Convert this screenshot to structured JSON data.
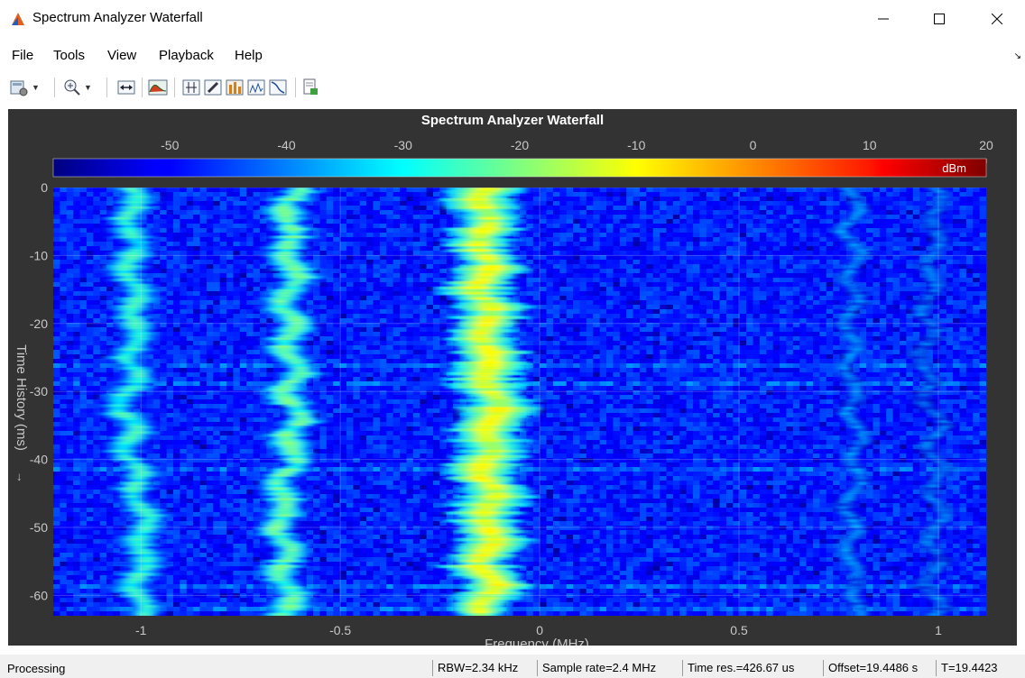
{
  "window": {
    "title": "Spectrum Analyzer Waterfall"
  },
  "menu": [
    "File",
    "Tools",
    "View",
    "Playback",
    "Help"
  ],
  "toolbar": {
    "buttons": [
      {
        "name": "configuration-icon",
        "has_dropdown": true
      },
      {
        "name": "zoom-in-icon",
        "has_dropdown": true
      },
      {
        "name": "scale-x-axis-icon",
        "has_dropdown": false
      },
      {
        "name": "spectrum-settings-icon",
        "has_dropdown": false
      },
      {
        "name": "measurement-cursor-icon",
        "has_dropdown": false
      },
      {
        "name": "edit-pen-icon",
        "has_dropdown": false
      },
      {
        "name": "peak-finder-icon",
        "has_dropdown": false
      },
      {
        "name": "distortion-measurement-icon",
        "has_dropdown": false
      },
      {
        "name": "ccdf-measurement-icon",
        "has_dropdown": false
      },
      {
        "name": "print-to-figure-icon",
        "has_dropdown": false
      }
    ]
  },
  "plot": {
    "title": "Spectrum Analyzer Waterfall",
    "colorbar": {
      "ticks": [
        "-50",
        "-40",
        "-30",
        "-20",
        "-10",
        "0",
        "10",
        "20"
      ],
      "unit": "dBm",
      "range": [
        -60,
        20
      ]
    },
    "xlabel": "Frequency (MHz)",
    "ylabel": "Time History (ms)",
    "ylabel_arrow": "→",
    "x_ticks": [
      "-1",
      "-0.5",
      "0",
      "0.5",
      "1"
    ],
    "y_ticks": [
      "0",
      "-10",
      "-20",
      "-30",
      "-40",
      "-50",
      "-60"
    ],
    "x_range": [
      -1.22,
      1.12
    ],
    "y_range": [
      -63,
      0
    ],
    "colors": {
      "panel": "#333333",
      "text": "#c8c8c8",
      "title": "#ffffff"
    },
    "signals": [
      {
        "freq": -1.02,
        "peak_dbm": -22
      },
      {
        "freq": -0.62,
        "peak_dbm": -18
      },
      {
        "freq": -0.12,
        "peak_dbm": -8
      },
      {
        "freq": 0.79,
        "peak_dbm": -32
      },
      {
        "freq": 0.98,
        "peak_dbm": -34
      }
    ]
  },
  "status": {
    "left": "Processing",
    "fields": [
      "RBW=2.34 kHz",
      "Sample rate=2.4 MHz",
      "Time res.=426.67 us",
      "Offset=19.4486 s",
      "T=19.4423"
    ]
  }
}
